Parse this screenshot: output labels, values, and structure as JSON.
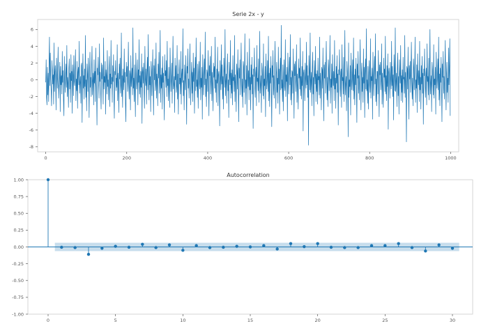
{
  "chart_data": [
    {
      "type": "line",
      "title": "Serie 2x - y",
      "xlabel": "",
      "ylabel": "",
      "xlim": [
        -20,
        1020
      ],
      "ylim": [
        -8.6,
        7.2
      ],
      "xticks": [
        0,
        200,
        400,
        600,
        800,
        1000
      ],
      "yticks": [
        -8,
        -6,
        -4,
        -2,
        0,
        2,
        4,
        6
      ],
      "grid": false,
      "color": "#1f77b4",
      "series": [
        {
          "x_start": 0,
          "x_step": 1,
          "values": [
            -0.3,
            2.4,
            -2.1,
            -3.0,
            1.5,
            -1.8,
            0.8,
            -2.6,
            1.9,
            5.1,
            -0.7,
            3.2,
            0.1,
            -1.2,
            -3.1,
            2.3,
            1.2,
            -0.5,
            0.6,
            -2.9,
            4.4,
            -1.4,
            0.9,
            1.7,
            -0.2,
            -3.6,
            2.6,
            0.4,
            -1.0,
            1.3,
            3.9,
            -2.2,
            -0.8,
            0.2,
            2.1,
            -3.8,
            1.6,
            -0.6,
            0.5,
            -1.7,
            3.4,
            -0.3,
            1.1,
            -2.4,
            -4.3,
            2.8,
            0.0,
            -1.5,
            0.7,
            1.9,
            -0.9,
            4.1,
            -2.0,
            0.3,
            -0.4,
            -3.3,
            1.4,
            2.5,
            -1.1,
            0.8,
            -2.7,
            3.0,
            -0.1,
            1.0,
            -4.0,
            1.8,
            0.6,
            -1.9,
            2.9,
            -0.2,
            -0.7,
            1.2,
            3.6,
            -2.5,
            0.1,
            -1.3,
            2.2,
            -3.4,
            0.9,
            1.5,
            -0.6,
            4.6,
            -1.6,
            -0.3,
            0.4,
            -2.8,
            1.7,
            2.0,
            -5.1,
            0.2,
            3.1,
            -1.0,
            0.5,
            -2.3,
            1.3,
            -0.8,
            5.3,
            -2.1,
            0.0,
            -3.7,
            1.9,
            0.7,
            -1.4,
            2.6,
            -0.5,
            -4.5,
            1.1,
            3.3,
            -0.9,
            0.3,
            -2.0,
            1.6,
            4.0,
            -1.8,
            -0.1,
            0.8,
            -3.0,
            2.4,
            -0.4,
            1.0,
            -2.6,
            3.8,
            0.2,
            -1.2,
            -5.4,
            1.4,
            0.6,
            2.7,
            -0.7,
            -2.2,
            4.3,
            -0.2,
            0.9,
            -1.5,
            -3.5,
            2.0,
            0.1,
            1.8,
            -0.6,
            -2.9,
            5.0,
            -1.1,
            0.4,
            -0.3,
            2.2,
            -4.1,
            1.2,
            0.5,
            -1.7,
            3.5,
            -0.8,
            0.0,
            -2.4,
            1.5,
            2.8,
            -3.2,
            0.7,
            -1.0,
            4.7,
            -0.5,
            0.3,
            -2.7,
            1.7,
            -0.2,
            3.0,
            -1.9,
            -4.6,
            1.0,
            0.6,
            2.3,
            -1.3,
            0.2,
            -0.9,
            4.2,
            -2.5,
            0.8,
            -0.4,
            -3.9,
            1.9,
            0.1,
            2.6,
            -1.6,
            -0.7,
            5.6,
            -2.0,
            0.5,
            -3.3,
            1.3,
            0.0,
            -1.2,
            3.7,
            -0.3,
            0.9,
            -2.8,
            -5.0,
            2.1,
            0.4,
            1.6,
            -1.4,
            -0.1,
            4.5,
            -0.6,
            -2.3,
            1.1,
            0.7,
            -3.6,
            2.9,
            -0.8,
            0.3,
            1.4,
            -1.8,
            6.2,
            -1.0,
            0.2,
            -2.6,
            1.8,
            -0.5,
            -4.4,
            3.2,
            0.6,
            -1.1,
            0.0,
            2.4,
            -3.0,
            1.2,
            -0.3,
            4.8,
            -1.7,
            0.5,
            -2.1,
            1.0,
            -0.9,
            3.1,
            -5.2,
            0.8,
            1.5,
            -0.4,
            2.0,
            -1.5,
            -3.4,
            4.0,
            0.1,
            -0.7,
            1.3,
            -2.9,
            0.9,
            2.7,
            -1.2,
            5.4,
            -0.2,
            -2.4,
            1.6,
            -0.6,
            0.4,
            -3.8,
            2.2,
            1.0,
            -1.9,
            0.3,
            3.6,
            -0.8,
            -4.2,
            1.7,
            0.0,
            2.5,
            -1.3,
            -0.5,
            4.4,
            -2.2,
            0.7,
            -0.1,
            -3.1,
            1.9,
            0.2,
            3.3,
            -1.6,
            -0.4,
            5.9,
            -2.7,
            0.6,
            -1.0,
            1.4,
            -3.5,
            2.8,
            -0.3,
            0.8,
            -1.8,
            -4.8,
            3.0,
            0.5,
            1.1,
            -0.9,
            2.3,
            -2.0,
            4.6,
            -0.7,
            0.1,
            -2.5,
            1.5,
            -0.2,
            -3.3,
            3.8,
            0.9,
            -1.4,
            0.3,
            2.0,
            -2.8,
            1.2,
            5.2,
            -1.1,
            -0.6,
            0.4,
            -3.9,
            2.6,
            0.0,
            1.7,
            -1.5,
            -0.8,
            4.1,
            -2.3,
            0.7,
            -4.1,
            1.0,
            2.4,
            -0.5,
            0.2,
            -1.7,
            3.4,
            -2.9,
            0.6,
            1.3,
            -0.3,
            6.1,
            -1.9,
            -0.1,
            -3.6,
            1.8,
            0.4,
            -1.2,
            2.9,
            -0.7,
            -5.3,
            1.6,
            0.8,
            3.7,
            -1.0,
            0.1,
            -2.2,
            1.1,
            4.3,
            -0.4,
            -3.0,
            0.5,
            2.1,
            -1.6,
            0.9,
            -2.6,
            3.2,
            -0.2,
            1.4,
            -4.0,
            0.3,
            2.7,
            -1.3,
            5.0,
            -0.8,
            0.0,
            -2.1,
            1.9,
            -3.4,
            0.6,
            2.2,
            -0.5,
            -1.1,
            4.5,
            -2.4,
            0.2,
            -0.9,
            1.5,
            -4.7,
            3.0,
            0.7,
            -1.8,
            0.4,
            2.5,
            -0.6,
            5.7,
            -2.0,
            0.1,
            -3.2,
            1.2,
            0.8,
            -1.4,
            3.5,
            -0.3,
            -4.3,
            1.7,
            0.5,
            2.8,
            -1.7,
            -0.1,
            4.0,
            -2.5,
            0.9,
            -0.7,
            -3.7,
            2.0,
            0.3,
            1.6,
            -1.0,
            5.1,
            -1.5,
            0.0,
            -2.7,
            1.3,
            -0.4,
            3.9,
            -3.1,
            0.6,
            1.0,
            -0.8,
            -5.5,
            2.3,
            0.2,
            -1.2,
            4.2,
            -0.5,
            1.8,
            -2.3,
            0.4,
            -3.5,
            2.6,
            1.1,
            -0.9,
            6.0,
            -1.9,
            -0.2,
            0.7,
            -2.8,
            1.5,
            3.1,
            -1.3,
            0.0,
            -4.5,
            2.1,
            0.5,
            -0.6,
            4.7,
            -2.2,
            0.8,
            -1.6,
            1.2,
            -3.0,
            2.9,
            -0.1,
            0.3,
            -1.4,
            5.3,
            -2.6,
            0.6,
            -0.3,
            -3.8,
            1.9,
            1.0,
            -1.1,
            3.6,
            -0.7,
            -5.0,
            1.4,
            0.2,
            2.4,
            -1.8,
            0.9,
            4.4,
            -0.4,
            -2.0,
            0.1,
            -3.3,
            2.2,
            1.6,
            -1.5,
            0.5,
            5.5,
            -2.9,
            0.0,
            -1.0,
            1.7,
            -4.2,
            3.3,
            0.7,
            -0.8,
            1.1,
            -2.4,
            4.9,
            -1.2,
            0.3,
            -3.6,
            1.8,
            -0.5,
            2.7,
            -1.7,
            0.6,
            -5.8,
            1.3,
            0.4,
            3.8,
            -0.9,
            -2.1,
            0.8,
            1.5,
            -3.1,
            4.1,
            -0.2,
            0.2,
            -1.3,
            2.5,
            -2.7,
            0.9,
            5.8,
            -1.6,
            -0.6,
            0.5,
            -3.9,
            2.0,
            1.2,
            -0.3,
            -1.9,
            4.3,
            -2.3,
            0.1,
            -0.7,
            1.6,
            -4.4,
            3.1,
            0.6,
            -1.1,
            0.0,
            2.3,
            -1.4,
            5.2,
            -2.5,
            0.8,
            -3.2,
            1.4,
            -0.4,
            2.8,
            -0.9,
            -5.6,
            1.7,
            0.3,
            3.5,
            -1.8,
            0.5,
            -2.2,
            1.0,
            4.6,
            -0.1,
            -3.4,
            0.7,
            2.1,
            -1.5,
            0.2,
            -2.8,
            3.9,
            -0.5,
            1.3,
            -4.1,
            0.9,
            2.6,
            -1.2,
            6.5,
            -1.0,
            0.0,
            -2.6,
            1.8,
            -3.7,
            0.4,
            2.4,
            -0.8,
            -1.3,
            4.8,
            -2.0,
            0.6,
            -0.2,
            1.5,
            -4.9,
            3.2,
            0.1,
            -1.7,
            0.8,
            2.7,
            -0.6,
            5.4,
            -2.4,
            0.3,
            -3.0,
            1.1,
            0.9,
            -1.6,
            3.7,
            -0.3,
            -4.6,
            1.9,
            0.5,
            2.2,
            -1.4,
            0.0,
            4.2,
            -2.7,
            0.7,
            -0.9,
            -3.5,
            2.5,
            0.2,
            1.4,
            -1.1,
            5.0,
            -1.9,
            0.4,
            -2.3,
            1.6,
            -0.7,
            3.4,
            -6.1,
            0.8,
            1.2,
            -0.4,
            -2.5,
            2.0,
            0.1,
            -1.0,
            4.5,
            -0.6,
            1.7,
            -2.1,
            0.5,
            -7.8,
            2.9,
            1.0,
            -1.2,
            5.6,
            -1.5,
            -0.1,
            0.9,
            -3.1,
            1.3,
            3.3,
            -1.7,
            0.3,
            -4.3,
            2.3,
            0.6,
            -0.5,
            4.0,
            -2.6,
            0.7,
            -1.4,
            1.1,
            -2.9,
            2.6,
            0.0,
            0.4,
            -1.8,
            5.1,
            -2.2,
            0.8,
            -0.3,
            -3.6,
            1.5,
            1.2,
            -1.0,
            3.8,
            -0.8,
            -4.9,
            1.8,
            0.2,
            2.1,
            -1.6,
            0.9,
            4.6,
            -0.2,
            -2.4,
            0.3,
            -3.2,
            2.4,
            1.4,
            -1.3,
            0.6,
            5.3,
            -2.8,
            0.1,
            -0.9,
            1.9,
            -4.0,
            3.0,
            0.5,
            -0.7,
            1.0,
            -2.5,
            4.7,
            -1.1,
            0.2,
            -3.4,
            1.6,
            -0.4,
            2.9,
            -1.5,
            0.7,
            -5.4,
            1.2,
            0.6,
            3.6,
            -1.0,
            -2.0,
            0.9,
            1.3,
            -3.3,
            4.2,
            -0.1,
            0.3,
            -1.7,
            2.7,
            -2.6,
            1.0,
            5.9,
            -1.8,
            -0.5,
            0.4,
            -3.7,
            2.2,
            1.1,
            -0.2,
            -6.8,
            4.4,
            -2.1,
            0.0,
            -0.8,
            1.7,
            -4.2,
            3.2,
            0.8,
            -1.2,
            0.1,
            2.4,
            -1.3,
            5.0,
            -2.3,
            0.6,
            -3.0,
            1.3,
            -0.6,
            2.6,
            -1.0,
            -5.1,
            1.9,
            0.2,
            3.4,
            -1.6,
            0.5,
            -2.4,
            1.1,
            4.8,
            -0.3,
            -3.6,
            0.7,
            2.0,
            -1.4,
            0.3,
            -2.7,
            3.7,
            -0.4,
            1.5,
            -4.5,
            0.8,
            2.5,
            -1.1,
            6.1,
            -1.3,
            0.0,
            -2.8,
            1.6,
            -3.5,
            0.5,
            2.3,
            -0.7,
            -1.5,
            4.9,
            -2.2,
            0.4,
            -0.1,
            1.4,
            -4.7,
            3.3,
            0.2,
            -1.9,
            0.9,
            2.8,
            -0.5,
            5.5,
            -2.6,
            0.1,
            -3.1,
            1.0,
            1.0,
            -1.7,
            3.5,
            -0.2,
            -4.4,
            1.8,
            0.6,
            2.1,
            -1.2,
            -0.1,
            4.3,
            -2.9,
            0.8,
            -1.0,
            -3.3,
            2.6,
            0.3,
            1.3,
            -1.4,
            5.2,
            -1.7,
            0.5,
            -2.5,
            1.7,
            -0.8,
            3.1,
            -5.9,
            0.9,
            1.4,
            -0.3,
            -2.2,
            2.1,
            0.0,
            -1.1,
            4.6,
            -0.7,
            1.6,
            -2.0,
            0.6,
            -4.8,
            3.0,
            1.1,
            -1.3,
            6.2,
            -1.4,
            -0.2,
            0.8,
            -3.2,
            1.2,
            3.2,
            -1.9,
            0.4,
            -4.1,
            2.4,
            0.7,
            -0.4,
            4.1,
            -2.5,
            0.5,
            -1.5,
            1.2,
            -2.7,
            2.7,
            0.1,
            0.3,
            -1.6,
            5.3,
            -2.1,
            0.9,
            -0.2,
            -7.4,
            1.6,
            1.3,
            -1.1,
            3.9,
            -0.9,
            -4.7,
            1.7,
            0.1,
            2.2,
            -1.5,
            1.0,
            4.5,
            -0.3,
            -2.3,
            0.2,
            -3.1,
            2.5,
            1.5,
            -1.2,
            0.7,
            5.1,
            -2.7,
            0.0,
            -1.0,
            1.8,
            -3.9,
            3.1,
            0.6,
            -0.6,
            1.1,
            -2.6,
            4.6,
            -1.2,
            0.3,
            -3.5,
            1.7,
            -0.5,
            2.8,
            -1.6,
            0.8,
            -5.3,
            1.3,
            0.5,
            3.7,
            -0.8,
            -2.1,
            0.7,
            1.4,
            -3.0,
            4.3,
            -0.2,
            0.4,
            -1.8,
            2.6,
            -2.4,
            1.1,
            6.0,
            -1.7,
            -0.4,
            0.5,
            -3.8,
            2.1,
            1.2,
            -0.1,
            -1.8,
            4.2,
            -2.2,
            0.1,
            -0.6,
            1.5,
            -4.1,
            3.3,
            0.7,
            -1.0,
            0.2,
            2.5,
            -1.2,
            5.1,
            -2.4,
            0.7,
            -3.1,
            1.4,
            -0.3,
            2.7,
            -1.1,
            -5.0,
            1.9,
            0.3,
            3.4,
            -1.6,
            0.4,
            -2.3,
            1.0,
            4.7,
            -0.4,
            -3.6,
            0.6,
            2.1,
            -1.5,
            0.2,
            -2.7,
            3.8,
            -0.6,
            1.3,
            4.9,
            -4.3
          ]
        }
      ]
    },
    {
      "type": "stem",
      "title": "Autocorrelation",
      "xlabel": "",
      "ylabel": "",
      "xlim": [
        -1.5,
        31.5
      ],
      "ylim": [
        -1.0,
        1.0
      ],
      "xticks": [
        0,
        5,
        10,
        15,
        20,
        25,
        30
      ],
      "yticks": [
        "-1.00",
        "-0.75",
        "-0.50",
        "-0.25",
        "0.00",
        "0.25",
        "0.50",
        "0.75",
        "1.00"
      ],
      "confidence_band": [
        -0.062,
        0.062
      ],
      "color": "#1f77b4",
      "x": [
        0,
        1,
        2,
        3,
        4,
        5,
        6,
        7,
        8,
        9,
        10,
        11,
        12,
        13,
        14,
        15,
        16,
        17,
        18,
        19,
        20,
        21,
        22,
        23,
        24,
        25,
        26,
        27,
        28,
        29,
        30
      ],
      "values": [
        1.0,
        -0.005,
        -0.01,
        -0.11,
        -0.02,
        0.01,
        -0.005,
        0.04,
        -0.01,
        0.03,
        -0.05,
        0.02,
        -0.01,
        -0.005,
        0.01,
        0.0,
        0.02,
        -0.03,
        0.05,
        0.005,
        0.05,
        -0.005,
        -0.01,
        -0.01,
        0.02,
        0.02,
        0.05,
        -0.01,
        -0.06,
        0.03,
        -0.02
      ]
    }
  ]
}
